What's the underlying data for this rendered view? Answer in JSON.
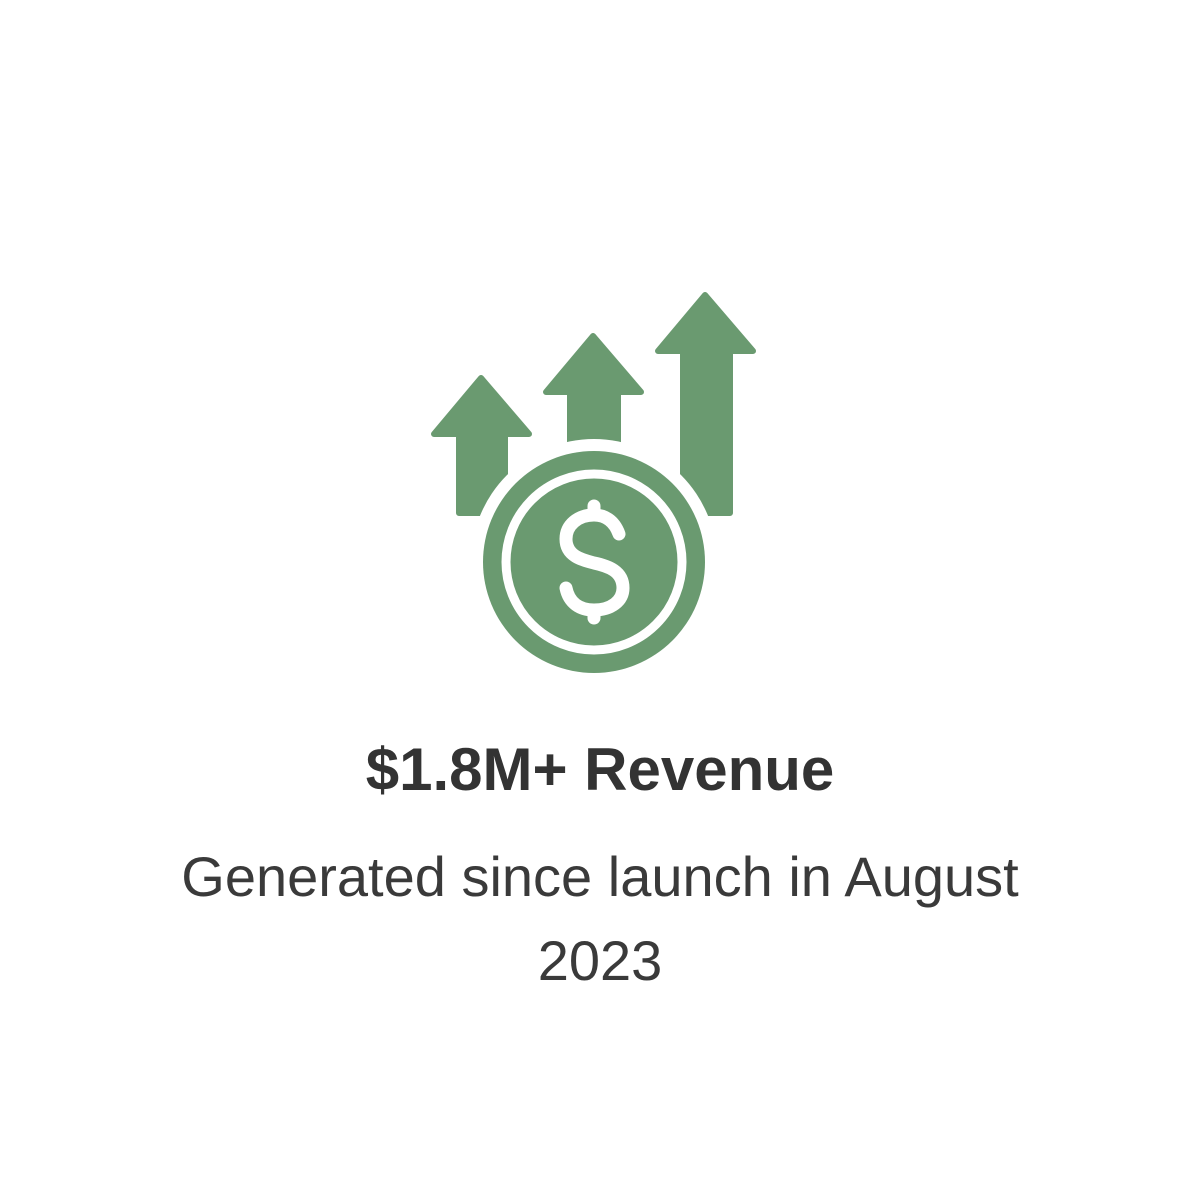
{
  "colors": {
    "accent": "#6a9a70",
    "text": "#333333"
  },
  "icon": "revenue-growth-coin-icon",
  "headline": "$1.8M+ Revenue",
  "description": "Generated since launch in August 2023"
}
